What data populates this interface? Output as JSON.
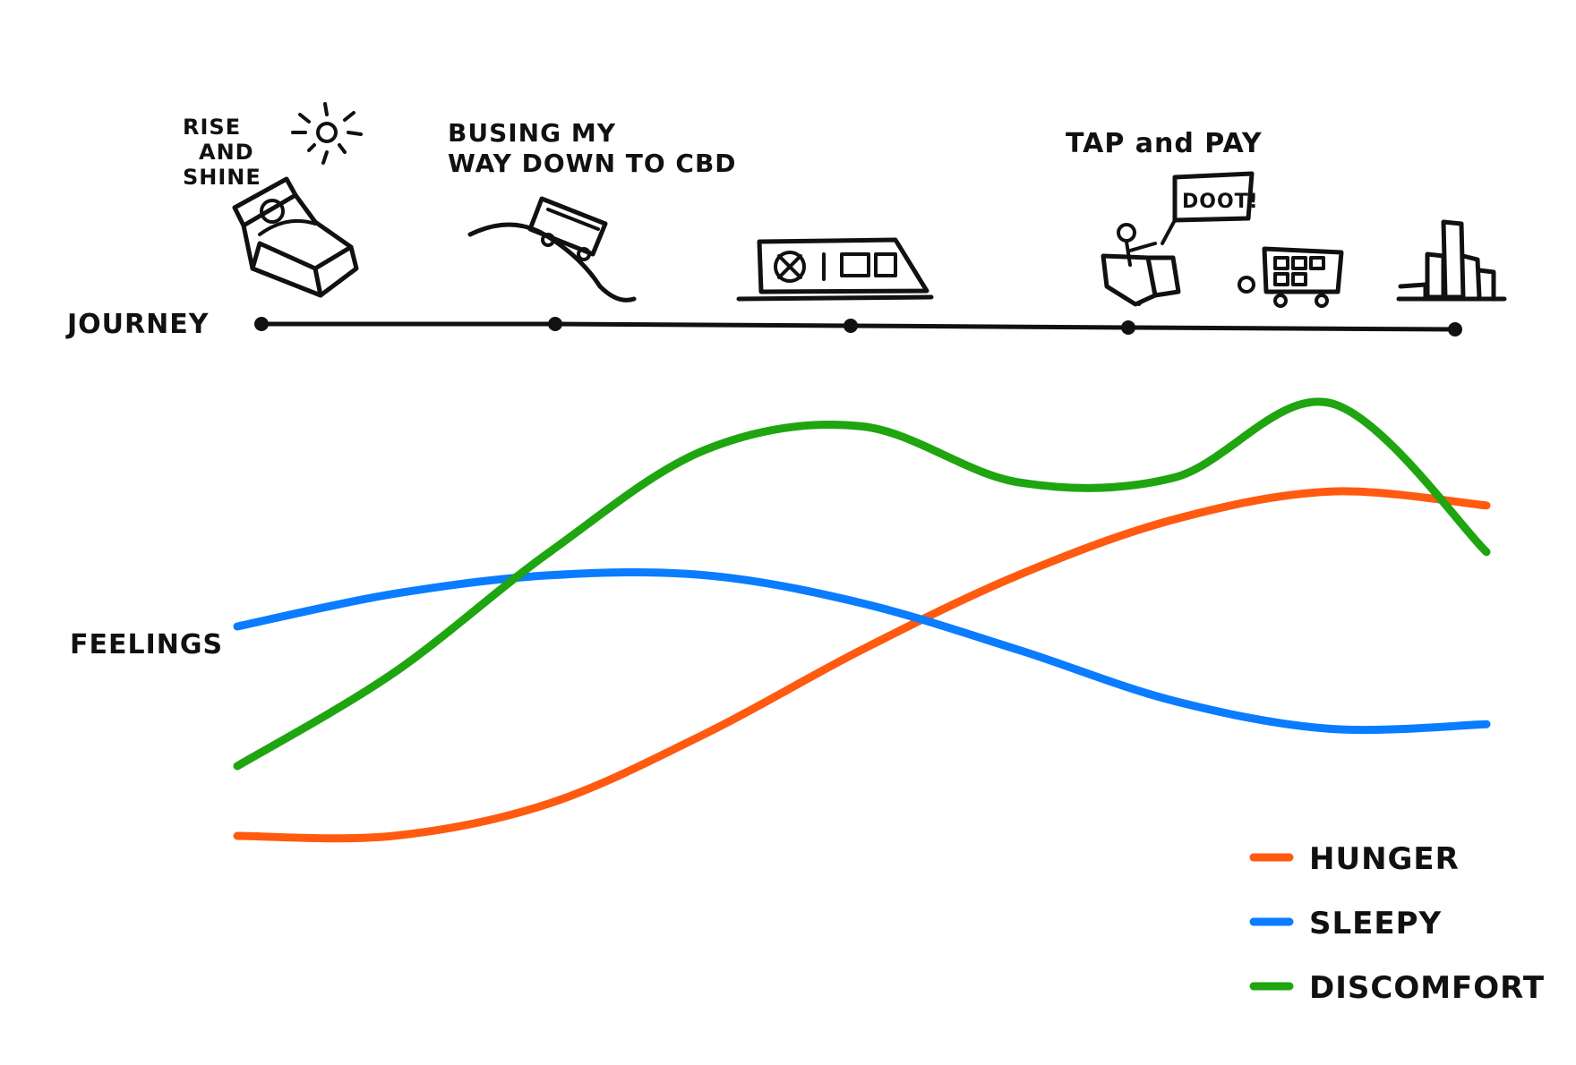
{
  "journey_label": "JOURNEY",
  "feelings_label": "FEELINGS",
  "steps": [
    {
      "label_lines": [
        "RISE",
        "AND",
        "SHINE"
      ],
      "icon": "bed-icon"
    },
    {
      "label_lines": [
        "BUSING MY",
        "WAY DOWN TO CBD"
      ],
      "icon": "bus-icon"
    },
    {
      "label_lines": [],
      "icon": "train-icon"
    },
    {
      "label_lines": [
        "TAP and PAY"
      ],
      "icon": "cashier-icon"
    },
    {
      "label_lines": [],
      "icon": "city-icon"
    }
  ],
  "sun_icon": "sun-icon",
  "speech_bubble": "DOOT!",
  "legend": [
    {
      "name": "HUNGER",
      "color": "#ff5a0f"
    },
    {
      "name": "SLEEPY",
      "color": "#0a7cff"
    },
    {
      "name": "DISCOMFORT",
      "color": "#1ea50f"
    }
  ],
  "chart_data": {
    "type": "line",
    "x": [
      1,
      1.5,
      2,
      2.5,
      3,
      3.5,
      4,
      4.5,
      5
    ],
    "series": [
      {
        "name": "HUNGER",
        "color": "#ff5a0f",
        "values": [
          0.05,
          0.05,
          0.12,
          0.27,
          0.45,
          0.61,
          0.73,
          0.79,
          0.76
        ]
      },
      {
        "name": "SLEEPY",
        "color": "#0a7cff",
        "values": [
          0.5,
          0.57,
          0.61,
          0.61,
          0.55,
          0.45,
          0.34,
          0.28,
          0.29
        ]
      },
      {
        "name": "DISCOMFORT",
        "color": "#1ea50f",
        "values": [
          0.2,
          0.4,
          0.66,
          0.88,
          0.93,
          0.81,
          0.82,
          0.98,
          0.66
        ]
      }
    ],
    "xlabel": "JOURNEY",
    "ylabel": "FEELINGS",
    "legend_position": "bottom-right",
    "grid": false
  }
}
